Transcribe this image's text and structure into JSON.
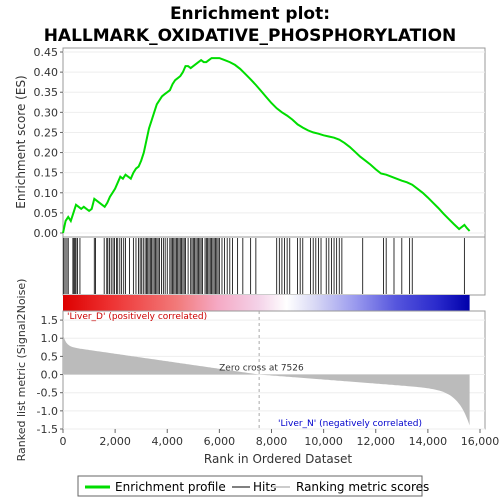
{
  "chart_data": {
    "type": "line",
    "title_line1": "Enrichment plot:",
    "title_line2": "HALLMARK_OXIDATIVE_PHOSPHORYLATION",
    "es_panel": {
      "ylabel": "Enrichment score (ES)",
      "ylim": [
        -0.01,
        0.46
      ],
      "yticks": [
        "0.00",
        "0.05",
        "0.10",
        "0.15",
        "0.20",
        "0.25",
        "0.30",
        "0.35",
        "0.40",
        "0.45"
      ],
      "ytick_values": [
        0,
        0.05,
        0.1,
        0.15,
        0.2,
        0.25,
        0.3,
        0.35,
        0.4,
        0.45
      ],
      "series_name": "Enrichment profile",
      "color": "#00dd00",
      "points": [
        [
          0,
          0
        ],
        [
          100,
          0.03
        ],
        [
          200,
          0.04
        ],
        [
          300,
          0.03
        ],
        [
          400,
          0.05
        ],
        [
          500,
          0.07
        ],
        [
          600,
          0.065
        ],
        [
          700,
          0.06
        ],
        [
          800,
          0.065
        ],
        [
          900,
          0.06
        ],
        [
          1000,
          0.055
        ],
        [
          1100,
          0.06
        ],
        [
          1200,
          0.085
        ],
        [
          1300,
          0.08
        ],
        [
          1400,
          0.075
        ],
        [
          1500,
          0.07
        ],
        [
          1600,
          0.065
        ],
        [
          1700,
          0.075
        ],
        [
          1800,
          0.09
        ],
        [
          1900,
          0.1
        ],
        [
          2000,
          0.11
        ],
        [
          2100,
          0.125
        ],
        [
          2200,
          0.14
        ],
        [
          2300,
          0.135
        ],
        [
          2400,
          0.145
        ],
        [
          2500,
          0.14
        ],
        [
          2600,
          0.135
        ],
        [
          2700,
          0.15
        ],
        [
          2800,
          0.16
        ],
        [
          2900,
          0.165
        ],
        [
          3000,
          0.18
        ],
        [
          3100,
          0.2
        ],
        [
          3200,
          0.23
        ],
        [
          3300,
          0.26
        ],
        [
          3400,
          0.28
        ],
        [
          3500,
          0.3
        ],
        [
          3600,
          0.32
        ],
        [
          3700,
          0.33
        ],
        [
          3800,
          0.34
        ],
        [
          3900,
          0.345
        ],
        [
          4000,
          0.35
        ],
        [
          4100,
          0.355
        ],
        [
          4200,
          0.37
        ],
        [
          4300,
          0.38
        ],
        [
          4400,
          0.385
        ],
        [
          4500,
          0.39
        ],
        [
          4600,
          0.4
        ],
        [
          4700,
          0.415
        ],
        [
          4800,
          0.415
        ],
        [
          4900,
          0.41
        ],
        [
          5000,
          0.415
        ],
        [
          5100,
          0.42
        ],
        [
          5200,
          0.425
        ],
        [
          5300,
          0.43
        ],
        [
          5400,
          0.425
        ],
        [
          5500,
          0.425
        ],
        [
          5600,
          0.43
        ],
        [
          5700,
          0.435
        ],
        [
          5800,
          0.435
        ],
        [
          5900,
          0.435
        ],
        [
          6000,
          0.435
        ],
        [
          6200,
          0.43
        ],
        [
          6400,
          0.425
        ],
        [
          6600,
          0.418
        ],
        [
          6800,
          0.408
        ],
        [
          7000,
          0.395
        ],
        [
          7200,
          0.382
        ],
        [
          7400,
          0.368
        ],
        [
          7600,
          0.353
        ],
        [
          7800,
          0.338
        ],
        [
          8000,
          0.323
        ],
        [
          8200,
          0.31
        ],
        [
          8400,
          0.3
        ],
        [
          8600,
          0.292
        ],
        [
          8800,
          0.282
        ],
        [
          9000,
          0.27
        ],
        [
          9200,
          0.262
        ],
        [
          9400,
          0.255
        ],
        [
          9600,
          0.25
        ],
        [
          9800,
          0.247
        ],
        [
          10000,
          0.243
        ],
        [
          10200,
          0.24
        ],
        [
          10400,
          0.237
        ],
        [
          10600,
          0.232
        ],
        [
          10800,
          0.224
        ],
        [
          11000,
          0.214
        ],
        [
          11200,
          0.202
        ],
        [
          11400,
          0.19
        ],
        [
          11600,
          0.18
        ],
        [
          11800,
          0.17
        ],
        [
          12000,
          0.158
        ],
        [
          12200,
          0.148
        ],
        [
          12400,
          0.145
        ],
        [
          12600,
          0.14
        ],
        [
          12800,
          0.135
        ],
        [
          13000,
          0.13
        ],
        [
          13200,
          0.126
        ],
        [
          13400,
          0.12
        ],
        [
          13600,
          0.11
        ],
        [
          13800,
          0.1
        ],
        [
          14000,
          0.088
        ],
        [
          14200,
          0.075
        ],
        [
          14400,
          0.062
        ],
        [
          14600,
          0.048
        ],
        [
          14800,
          0.035
        ],
        [
          15000,
          0.022
        ],
        [
          15200,
          0.01
        ],
        [
          15400,
          0.02
        ],
        [
          15500,
          0.012
        ],
        [
          15600,
          0.005
        ]
      ]
    },
    "hits": [
      30,
      80,
      150,
      200,
      380,
      420,
      460,
      500,
      560,
      650,
      1200,
      1250,
      1580,
      1680,
      1720,
      1780,
      1850,
      1920,
      1980,
      2050,
      2100,
      2180,
      2250,
      2330,
      2400,
      2550,
      2700,
      2800,
      2900,
      2960,
      3020,
      3080,
      3150,
      3200,
      3250,
      3300,
      3350,
      3400,
      3450,
      3500,
      3550,
      3600,
      3650,
      3700,
      3780,
      3850,
      3920,
      4000,
      4100,
      4150,
      4200,
      4250,
      4300,
      4350,
      4400,
      4450,
      4500,
      4550,
      4600,
      4650,
      4700,
      4800,
      4900,
      4950,
      5000,
      5050,
      5100,
      5150,
      5200,
      5250,
      5300,
      5350,
      5450,
      5500,
      5550,
      5600,
      5650,
      5700,
      5750,
      5800,
      5850,
      5900,
      5950,
      6000,
      6100,
      6200,
      6300,
      6400,
      6500,
      6700,
      6900,
      7200,
      7400,
      8200,
      8300,
      8400,
      8500,
      8600,
      8700,
      9000,
      9100,
      9200,
      9500,
      9600,
      9700,
      9800,
      9900,
      10100,
      10200,
      10300,
      10400,
      10500,
      10600,
      10700,
      11500,
      12300,
      12400,
      12700,
      13000,
      13300,
      13400,
      15400
    ],
    "rank_colorbar": {
      "max_rank": 15600,
      "left_label": "'Liver_D' (positively correlated)",
      "right_label": "'Liver_N' (negatively correlated)",
      "left_label_color": "#cc0000",
      "right_label_color": "#0000cc"
    },
    "metric_panel": {
      "ylabel": "Ranked list metric (Signal2Noise)",
      "ylim": [
        -1.5,
        1.75
      ],
      "yticks": [
        "1.5",
        "1.0",
        "0.5",
        "0.0",
        "-0.5",
        "-1.0",
        "-1.5"
      ],
      "ytick_values": [
        1.5,
        1.0,
        0.5,
        0.0,
        -0.5,
        -1.0,
        -1.5
      ],
      "zero_cross_label": "Zero cross at 7526",
      "zero_cross": 7526,
      "start_value": 1.1,
      "end_value": -1.4,
      "fill_color": "#bbbbbb"
    },
    "xlabel": "Rank in Ordered Dataset",
    "xlim": [
      0,
      16000
    ],
    "xticks": [
      "0",
      "2,000",
      "4,000",
      "6,000",
      "8,000",
      "10,000",
      "12,000",
      "14,000",
      "16,000"
    ],
    "xtick_values": [
      0,
      2000,
      4000,
      6000,
      8000,
      10000,
      12000,
      14000,
      16000
    ],
    "legend": [
      {
        "label": "Enrichment profile",
        "color": "#00dd00"
      },
      {
        "label": "Hits",
        "color": "#000000"
      },
      {
        "label": "Ranking metric scores",
        "color": "#cccccc"
      }
    ]
  }
}
